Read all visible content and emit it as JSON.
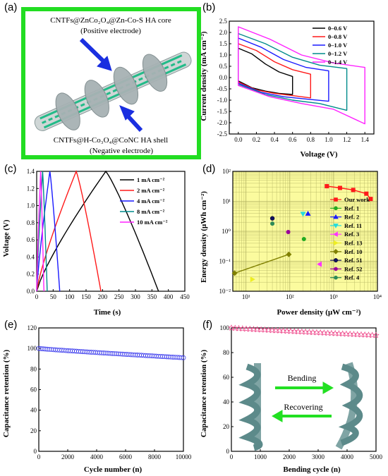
{
  "panel_letters": {
    "a": "(a)",
    "b": "(b)",
    "c": "(c)",
    "d": "(d)",
    "e": "(e)",
    "f": "(f)"
  },
  "panel_a": {
    "top_label_1": "CNTFs@ZnCo₂O₄@Zn-Co-S HA core",
    "top_label_2": "(Positive electrode)",
    "bottom_label_1": "CNTFs@H-Co₃O₄@CoNC HA shell",
    "bottom_label_2": "(Negative electrode)",
    "frame_color": "#22dd22",
    "arrow_color": "#1a2fe0"
  },
  "panel_f_inset": {
    "top_text": "Bending",
    "bottom_text": "Recovering",
    "arrow_color": "#22e022"
  },
  "chart_data": [
    {
      "id": "b",
      "type": "line",
      "xlabel": "Voltage (V)",
      "ylabel": "Current density (mA cm⁻²)",
      "xlim": [
        -0.1,
        1.5
      ],
      "ylim": [
        -2.5,
        2.5
      ],
      "xticks": [
        "0.0",
        "0.2",
        "0.4",
        "0.6",
        "0.8",
        "1.0",
        "1.2",
        "1.4"
      ],
      "yticks": [
        "-2.5",
        "-2.0",
        "-1.5",
        "-1.0",
        "-0.5",
        "0.0",
        "0.5",
        "1.0",
        "1.5",
        "2.0",
        "2.5"
      ],
      "legend_position": "top-right",
      "series": [
        {
          "name": "0–0.6 V",
          "color": "#000000",
          "vmax": 0.6,
          "top": [
            1.3,
            1.05,
            0.6,
            0.25,
            0.05
          ],
          "bottom": [
            -0.15,
            -0.45,
            -0.6,
            -0.7,
            -0.75
          ]
        },
        {
          "name": "0–0.8 V",
          "color": "#ff1a1a",
          "vmax": 0.8,
          "top": [
            1.5,
            1.2,
            0.7,
            0.35,
            0.15
          ],
          "bottom": [
            -0.2,
            -0.55,
            -0.7,
            -0.8,
            -0.9
          ]
        },
        {
          "name": "0–1.0 V",
          "color": "#1a1aff",
          "vmax": 1.0,
          "top": [
            1.75,
            1.35,
            0.8,
            0.45,
            0.3
          ],
          "bottom": [
            -0.25,
            -0.65,
            -0.85,
            -0.95,
            -1.05
          ]
        },
        {
          "name": "0–1.2 V",
          "color": "#008b8b",
          "vmax": 1.2,
          "top": [
            1.95,
            1.5,
            0.9,
            0.55,
            0.4
          ],
          "bottom": [
            -0.3,
            -0.75,
            -1.0,
            -1.15,
            -1.45
          ]
        },
        {
          "name": "0–1.4 V",
          "color": "#ff22ff",
          "vmax": 1.4,
          "top": [
            2.25,
            1.7,
            1.0,
            0.65,
            0.45
          ],
          "bottom": [
            -0.35,
            -0.85,
            -1.15,
            -1.4,
            -2.05
          ]
        }
      ]
    },
    {
      "id": "c",
      "type": "line",
      "xlabel": "Time (s)",
      "ylabel": "Voltage (V)",
      "xlim": [
        0,
        450
      ],
      "ylim": [
        0,
        1.4
      ],
      "xticks": [
        "0",
        "50",
        "100",
        "150",
        "200",
        "250",
        "300",
        "350",
        "400",
        "450"
      ],
      "yticks": [
        "0.0",
        "0.2",
        "0.4",
        "0.6",
        "0.8",
        "1.0",
        "1.2",
        "1.4"
      ],
      "legend_position": "top-right",
      "series": [
        {
          "name": "1 mA cm⁻²",
          "color": "#000000",
          "t_charge": 210,
          "t_end": 370
        },
        {
          "name": "2 mA cm⁻²",
          "color": "#ff1a1a",
          "t_charge": 120,
          "t_end": 195
        },
        {
          "name": "4 mA cm⁻²",
          "color": "#1a1aff",
          "t_charge": 40,
          "t_end": 70
        },
        {
          "name": "8 mA cm⁻²",
          "color": "#008b8b",
          "t_charge": 18,
          "t_end": 32
        },
        {
          "name": "10 mA cm⁻²",
          "color": "#ff22ff",
          "t_charge": 12,
          "t_end": 22
        }
      ]
    },
    {
      "id": "d",
      "type": "scatter",
      "xlabel": "Power density (μW cm⁻²)",
      "ylabel": "Energy density (μWh cm⁻²)",
      "xscale": "log",
      "yscale": "log",
      "xlim": [
        5,
        10000
      ],
      "ylim": [
        0.01,
        100
      ],
      "xticks": [
        "10¹",
        "10²",
        "10³",
        "10⁴"
      ],
      "yticks": [
        "10⁻²",
        "10⁻¹",
        "10⁰",
        "10¹",
        "10²"
      ],
      "legend_position": "right",
      "series": [
        {
          "name": "Our work",
          "color": "#ff1a1a",
          "marker": "square",
          "line": true,
          "points": [
            [
              700,
              32
            ],
            [
              1400,
              28
            ],
            [
              2800,
              24
            ],
            [
              5600,
              18
            ],
            [
              7000,
              12
            ]
          ]
        },
        {
          "name": "Ref. 1",
          "color": "#22aa22",
          "marker": "circle",
          "points": [
            [
              210,
              0.55
            ]
          ]
        },
        {
          "name": "Ref. 2",
          "color": "#1a1aff",
          "marker": "triangle-up",
          "points": [
            [
              260,
              3.9
            ]
          ]
        },
        {
          "name": "Ref. 11",
          "color": "#22dddd",
          "marker": "triangle-down",
          "points": [
            [
              200,
              3.8
            ]
          ]
        },
        {
          "name": "Ref. 3",
          "color": "#ff33ff",
          "marker": "triangle-left",
          "points": [
            [
              480,
              0.08
            ]
          ]
        },
        {
          "name": "Ref. 13",
          "color": "#eeee22",
          "marker": "triangle-right",
          "points": [
            [
              14,
              0.025
            ]
          ]
        },
        {
          "name": "Ref. 10",
          "color": "#808000",
          "marker": "diamond",
          "line": true,
          "points": [
            [
              5.5,
              0.04
            ],
            [
              95,
              0.17
            ]
          ]
        },
        {
          "name": "Ref. 51",
          "color": "#101060",
          "marker": "hexagon",
          "points": [
            [
              40,
              2.7
            ]
          ]
        },
        {
          "name": "Ref. 52",
          "color": "#990099",
          "marker": "circle",
          "points": [
            [
              92,
              0.95
            ]
          ]
        },
        {
          "name": "Ref. 4",
          "color": "#2e8b57",
          "marker": "circle",
          "points": [
            [
              40,
              1.8
            ]
          ]
        }
      ]
    },
    {
      "id": "e",
      "type": "scatter",
      "xlabel": "Cycle number (n)",
      "ylabel": "Capacitance retention (%)",
      "xlim": [
        0,
        10000
      ],
      "ylim": [
        0,
        120
      ],
      "xticks": [
        "0",
        "2000",
        "4000",
        "6000",
        "8000",
        "10000"
      ],
      "yticks": [
        "0",
        "20",
        "40",
        "60",
        "80",
        "100",
        "120"
      ],
      "color": "#4444ee",
      "marker": "circle-open",
      "start": 100,
      "end": 91
    },
    {
      "id": "f",
      "type": "scatter",
      "xlabel": "Bending cycle (n)",
      "ylabel": "Capacitance retention (%)",
      "xlim": [
        0,
        5000
      ],
      "ylim": [
        0,
        100
      ],
      "xticks": [
        "0",
        "1000",
        "2000",
        "3000",
        "4000",
        "5000"
      ],
      "yticks": [
        "0",
        "20",
        "40",
        "60",
        "80",
        "100"
      ],
      "color": "#ee4488",
      "marker": "star-open",
      "start": 100,
      "end": 94
    }
  ]
}
